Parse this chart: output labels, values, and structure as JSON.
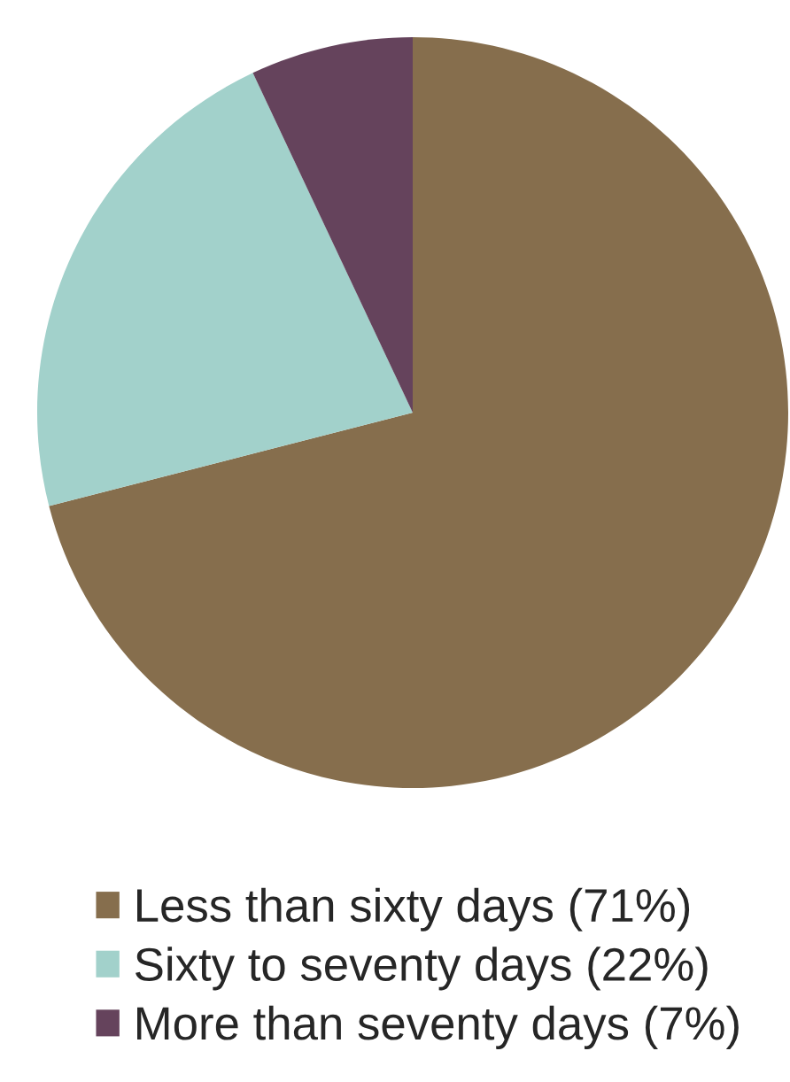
{
  "chart_data": {
    "type": "pie",
    "categories": [
      "Less than sixty days (71%)",
      "Sixty to seventy days (22%)",
      "More than seventy days (7%)"
    ],
    "values": [
      71,
      22,
      7
    ],
    "colors": [
      "#866e4d",
      "#a2d1cb",
      "#65435c"
    ],
    "legend": "bottom"
  }
}
